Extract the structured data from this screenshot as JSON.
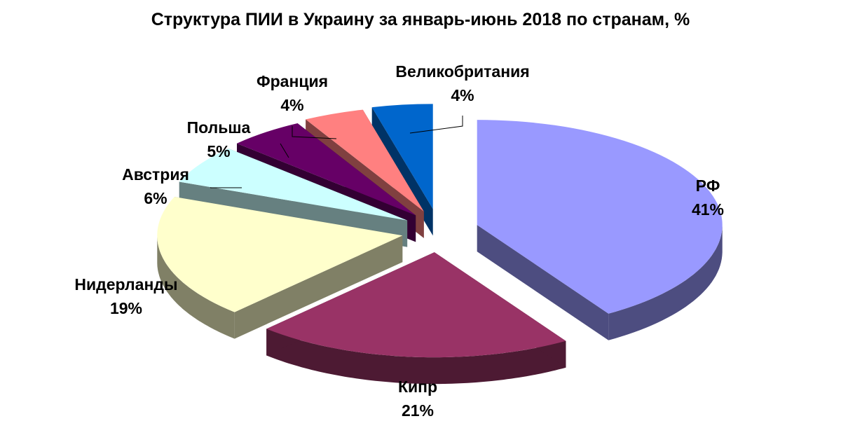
{
  "chart_data": {
    "type": "pie",
    "title": "Структура ПИИ в Украину за январь-июнь 2018 по странам, %",
    "style": "3d-exploded",
    "legend": "none",
    "slices": [
      {
        "name": "РФ",
        "value": 41,
        "label": "41%",
        "top_color": "#9999FF",
        "side_color": "#4D4D80"
      },
      {
        "name": "Кипр",
        "value": 21,
        "label": "21%",
        "top_color": "#993366",
        "side_color": "#4D1A33"
      },
      {
        "name": "Нидерланды",
        "value": 19,
        "label": "19%",
        "top_color": "#FFFFCC",
        "side_color": "#808066"
      },
      {
        "name": "Австрия",
        "value": 6,
        "label": "6%",
        "top_color": "#CCFFFF",
        "side_color": "#668080"
      },
      {
        "name": "Польша",
        "value": 5,
        "label": "5%",
        "top_color": "#660066",
        "side_color": "#330033"
      },
      {
        "name": "Франция",
        "value": 4,
        "label": "4%",
        "top_color": "#FF8080",
        "side_color": "#804040"
      },
      {
        "name": "Великобритания",
        "value": 4,
        "label": "4%",
        "top_color": "#0066CC",
        "side_color": "#003366"
      }
    ]
  }
}
